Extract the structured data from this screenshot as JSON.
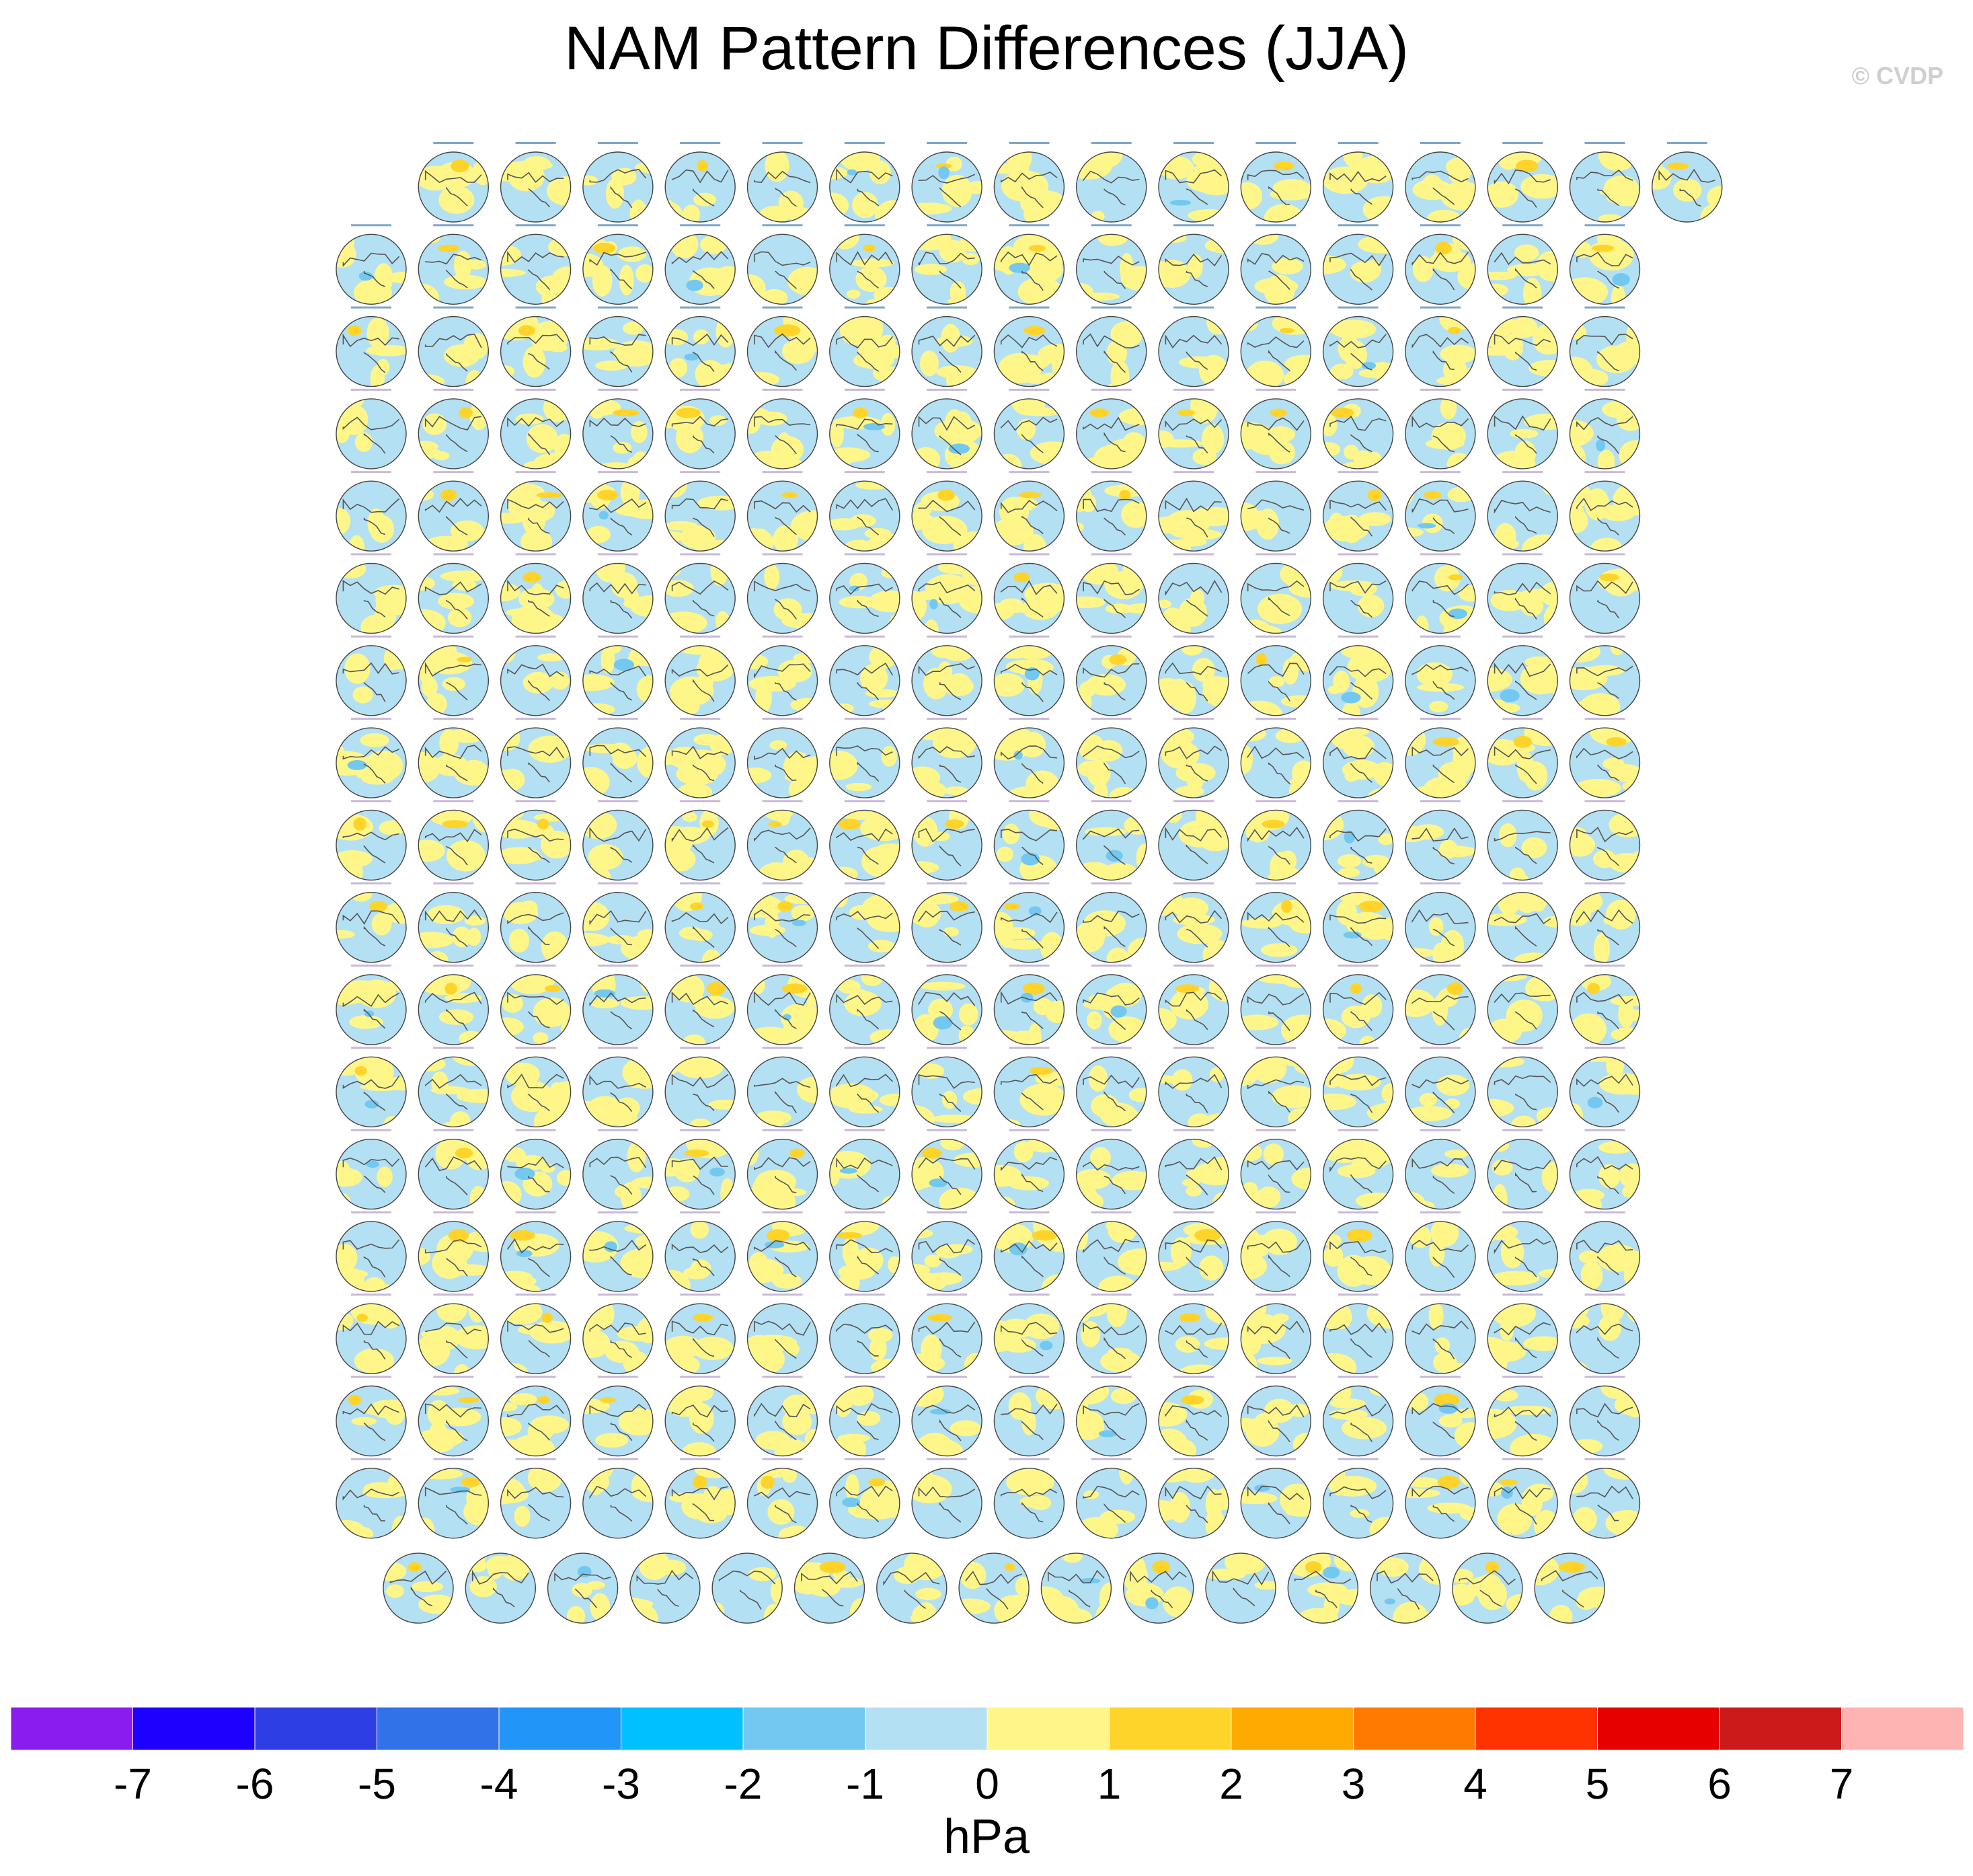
{
  "title": "NAM Pattern Differences (JJA)",
  "watermark": "© CVDP",
  "chart_data": {
    "type": "heatmap",
    "title": "NAM Pattern Differences (JJA)",
    "description_of_panels": "",
    "panel_rows": [
      16,
      16,
      16,
      16,
      16,
      16,
      16,
      16,
      16,
      16,
      16,
      16,
      16,
      16,
      16,
      16,
      16,
      15
    ],
    "first_row_offset_panels": 1,
    "colorbar": {
      "units": "hPa",
      "tick_labels": [
        "-7",
        "-6",
        "-5",
        "-4",
        "-3",
        "-2",
        "-1",
        "0",
        "1",
        "2",
        "3",
        "4",
        "5",
        "6",
        "7"
      ],
      "colors": [
        "#8b1cf0",
        "#1e00ff",
        "#2d3fe3",
        "#3272e8",
        "#2196f8",
        "#00c0ff",
        "#72c8f0",
        "#b4e0f4",
        "#fff68a",
        "#ffd42a",
        "#ffaa00",
        "#ff7a00",
        "#ff3300",
        "#e60000",
        "#cc1a1a",
        "#ffb4b4"
      ]
    }
  }
}
